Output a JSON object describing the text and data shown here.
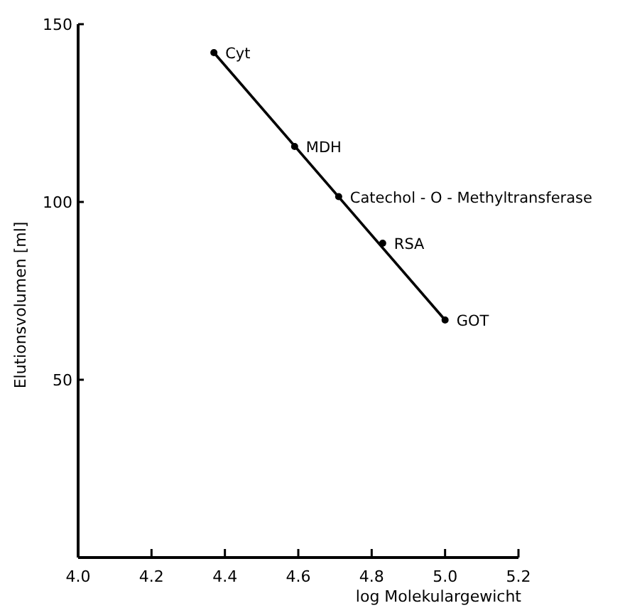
{
  "chart_data": {
    "type": "scatter",
    "xlabel": "log Molekulargewicht",
    "ylabel": "Elutionsvolumen [ml]",
    "xlim": [
      4.0,
      5.2
    ],
    "ylim": [
      0,
      150
    ],
    "xticks": [
      {
        "value": 4.0,
        "label": "4.0"
      },
      4.2,
      4.4,
      4.6,
      4.8,
      {
        "value": 5.0,
        "label": "5.0"
      },
      5.2
    ],
    "yticks": [
      50,
      100,
      150
    ],
    "grid": false,
    "marker": "circle",
    "series": [
      {
        "color": "#000000",
        "x": [
          4.37,
          4.59,
          4.71,
          4.83,
          5.0
        ],
        "values": [
          142,
          115.6,
          101.5,
          88.4,
          66.8
        ]
      },
      {
        "type": "line",
        "color": "#000000",
        "x": [
          4.37,
          5.0
        ],
        "values": [
          142,
          66.8
        ],
        "marker": "none",
        "line_style": "solid"
      }
    ],
    "annotations": [
      {
        "text": "Cyt",
        "x": 4.37,
        "y": 142
      },
      {
        "text": "MDH",
        "x": 4.59,
        "y": 115.6
      },
      {
        "text": "Catechol - O - Methyltransferase",
        "x": 4.71,
        "y": 101.5
      },
      {
        "text": "RSA",
        "x": 4.83,
        "y": 88.4
      },
      {
        "text": "GOT",
        "x": 5.0,
        "y": 66.8
      }
    ]
  }
}
